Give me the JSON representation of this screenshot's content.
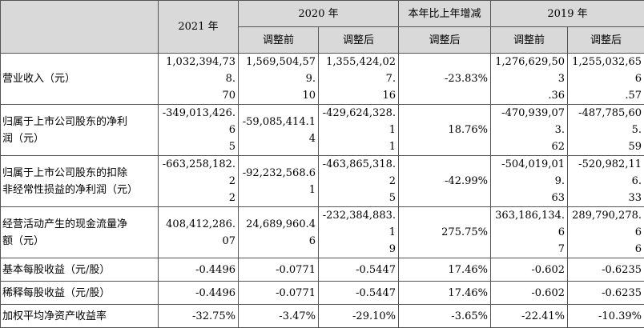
{
  "header": {
    "year_2021": "2021 年",
    "year_2020": "2020 年",
    "change": "本年比上年增减",
    "year_2019": "2019 年",
    "before_adj": "调整前",
    "after_adj": "调整后"
  },
  "rows": [
    {
      "label_lines": [
        "营业收入（元）"
      ],
      "v2021_lines": [
        "1,032,394,738.",
        "70"
      ],
      "v2020b_lines": [
        "1,569,504,579.",
        "10"
      ],
      "v2020a_lines": [
        "1,355,424,027.",
        "16"
      ],
      "change_lines": [
        "-23.83%"
      ],
      "v2019b_lines": [
        "1,276,629,503",
        ".36"
      ],
      "v2019a_lines": [
        "1,255,032,656",
        ".57"
      ]
    },
    {
      "label_lines": [
        "归属于上市公司股东的净利",
        "润（元）"
      ],
      "v2021_lines": [
        "-349,013,426.6",
        "5"
      ],
      "v2020b_lines": [
        "-59,085,414.14"
      ],
      "v2020a_lines": [
        "-429,624,328.1",
        "1"
      ],
      "change_lines": [
        "18.76%"
      ],
      "v2019b_lines": [
        "-470,939,073.",
        "62"
      ],
      "v2019a_lines": [
        "-487,785,605.",
        "59"
      ]
    },
    {
      "label_lines": [
        "归属于上市公司股东的扣除",
        "非经常性损益的净利润（元）"
      ],
      "v2021_lines": [
        "-663,258,182.2",
        "2"
      ],
      "v2020b_lines": [
        "-92,232,568.61"
      ],
      "v2020a_lines": [
        "-463,865,318.2",
        "5"
      ],
      "change_lines": [
        "-42.99%"
      ],
      "v2019b_lines": [
        "-504,019,019.",
        "63"
      ],
      "v2019a_lines": [
        "-520,982,116.",
        "33"
      ]
    },
    {
      "label_lines": [
        "经营活动产生的现金流量净",
        "额（元）"
      ],
      "v2021_lines": [
        "408,412,286.07"
      ],
      "v2020b_lines": [
        "24,689,960.46"
      ],
      "v2020a_lines": [
        "-232,384,883.1",
        "9"
      ],
      "change_lines": [
        "275.75%"
      ],
      "v2019b_lines": [
        "363,186,134.6",
        "7"
      ],
      "v2019a_lines": [
        "289,790,278.6",
        "6"
      ]
    },
    {
      "label_lines": [
        "基本每股收益（元/股）"
      ],
      "v2021_lines": [
        "-0.4496"
      ],
      "v2020b_lines": [
        "-0.0771"
      ],
      "v2020a_lines": [
        "-0.5447"
      ],
      "change_lines": [
        "17.46%"
      ],
      "v2019b_lines": [
        "-0.602"
      ],
      "v2019a_lines": [
        "-0.6235"
      ]
    },
    {
      "label_lines": [
        "稀释每股收益（元/股）"
      ],
      "v2021_lines": [
        "-0.4496"
      ],
      "v2020b_lines": [
        "-0.0771"
      ],
      "v2020a_lines": [
        "-0.5447"
      ],
      "change_lines": [
        "17.46%"
      ],
      "v2019b_lines": [
        "-0.602"
      ],
      "v2019a_lines": [
        "-0.6235"
      ]
    },
    {
      "label_lines": [
        "加权平均净资产收益率"
      ],
      "v2021_lines": [
        "-32.75%"
      ],
      "v2020b_lines": [
        "-3.47%"
      ],
      "v2020a_lines": [
        "-29.10%"
      ],
      "change_lines": [
        "-3.65%"
      ],
      "v2019b_lines": [
        "-22.41%"
      ],
      "v2019a_lines": [
        "-10.39%"
      ]
    }
  ],
  "colors": {
    "header_bg": "#d9d9d9",
    "border": "#555555"
  }
}
